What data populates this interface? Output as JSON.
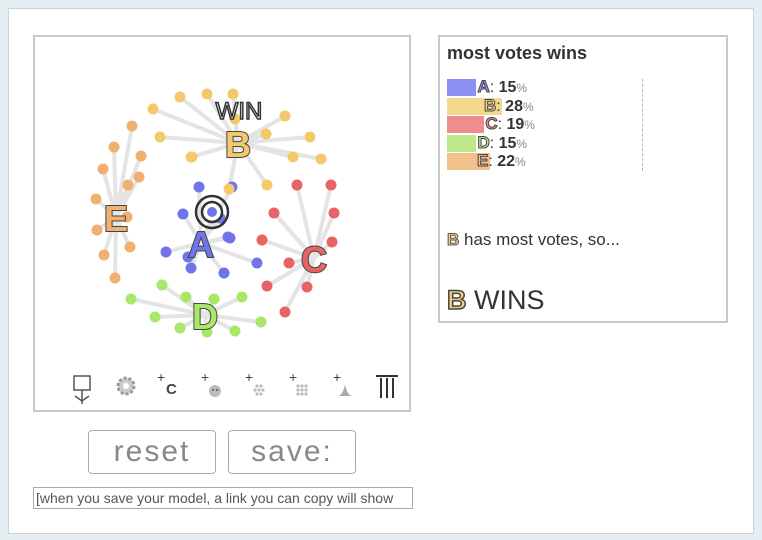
{
  "results": {
    "title": "most votes wins",
    "rows": [
      {
        "letter": "A",
        "value": 15,
        "pct": "%",
        "color": "#8d8ff1",
        "text": ": "
      },
      {
        "letter": "B",
        "value": 28,
        "pct": "%",
        "color": "#f3d98e",
        "text": ": "
      },
      {
        "letter": "C",
        "value": 19,
        "pct": "%",
        "color": "#ef8c8c",
        "text": ": "
      },
      {
        "letter": "D",
        "value": 15,
        "pct": "%",
        "color": "#bde88c",
        "text": ": "
      },
      {
        "letter": "E",
        "value": 22,
        "pct": "%",
        "color": "#f1c08b",
        "text": ": "
      }
    ],
    "message_letter": "B",
    "message_text": " has most votes, so...",
    "wins_letter": "B",
    "wins_text": " WINS"
  },
  "sim": {
    "win_label": "WIN",
    "candidates": [
      {
        "letter": "A",
        "color": "#7074e8"
      },
      {
        "letter": "B",
        "color": "#f3c96b"
      },
      {
        "letter": "C",
        "color": "#e86464"
      },
      {
        "letter": "D",
        "color": "#a9e76a"
      },
      {
        "letter": "E",
        "color": "#f0b070"
      }
    ]
  },
  "toolbar": {
    "tools": [
      {
        "name": "voter-tool-icon"
      },
      {
        "name": "settings-gear-icon"
      },
      {
        "name": "add-candidate-icon",
        "label": "C"
      },
      {
        "name": "add-voter-icon"
      },
      {
        "name": "add-voter-group-icon"
      },
      {
        "name": "add-voter-grid-icon"
      },
      {
        "name": "add-distribution-icon"
      },
      {
        "name": "columns-icon"
      }
    ]
  },
  "buttons": {
    "reset": "reset",
    "save": "save:"
  },
  "link_field": {
    "value": "[when you save your model, a link you can copy will show"
  }
}
